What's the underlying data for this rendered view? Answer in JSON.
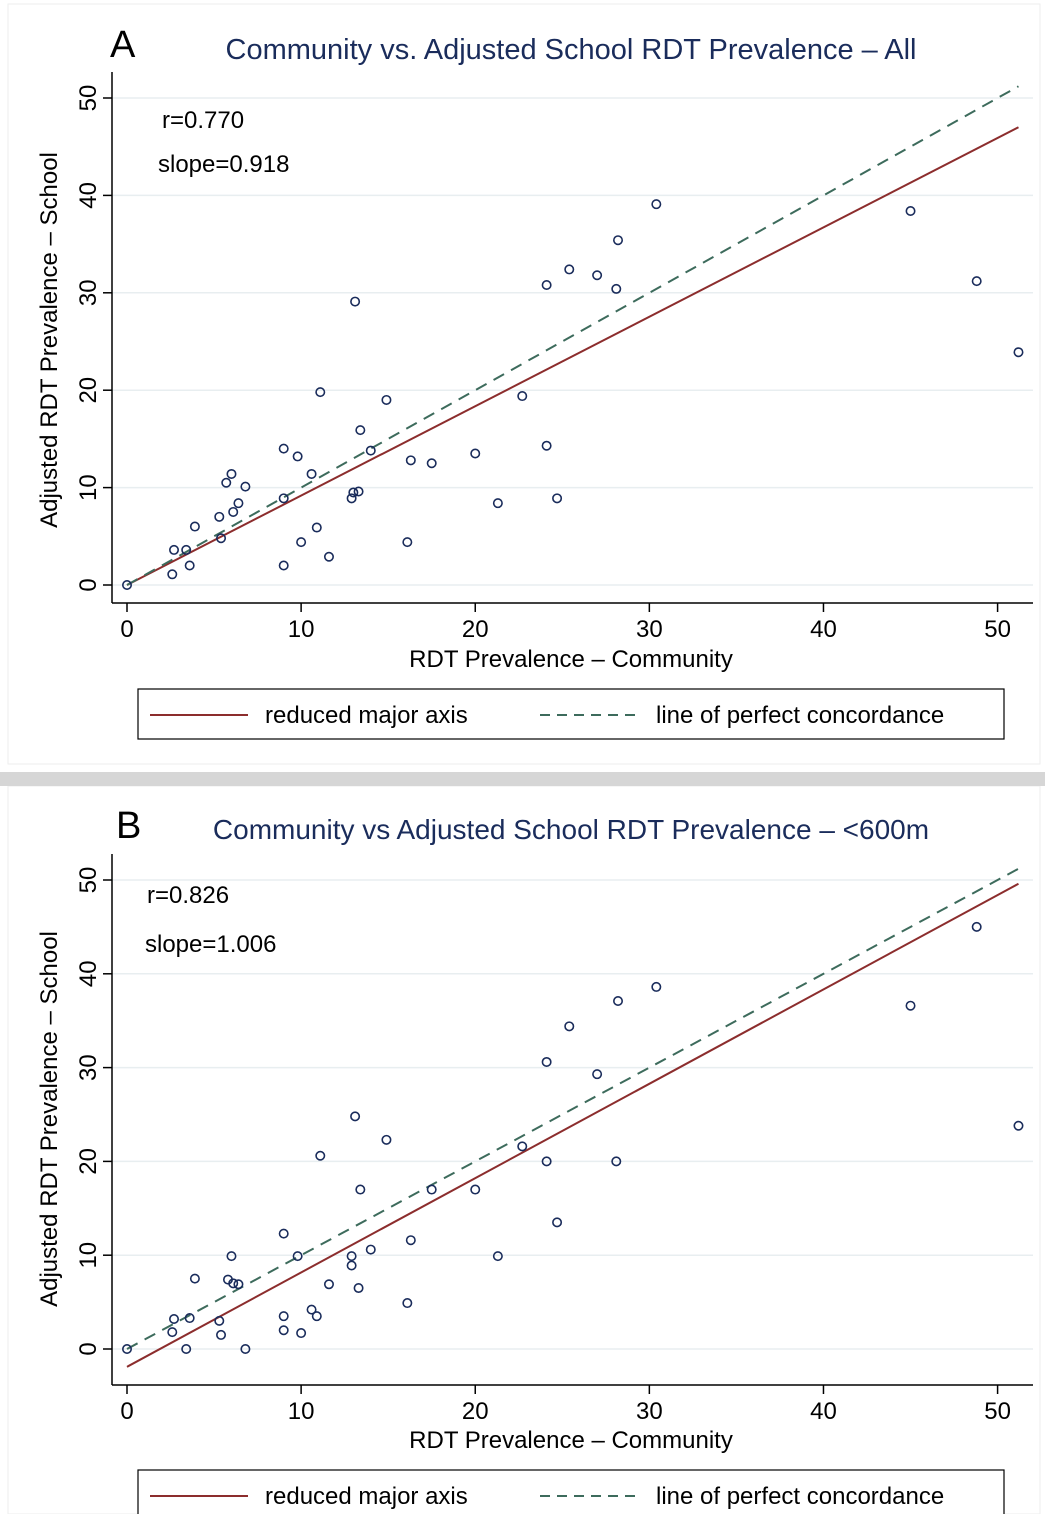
{
  "colors": {
    "title": "#1a2c5b",
    "rma": "#8c2d2d",
    "concordance": "#3d6b5c",
    "marker": "#1a2c5b",
    "grid": "#e8eef0",
    "axis": "#000000",
    "separator": "#d6d6d6"
  },
  "chart_data": [
    {
      "type": "scatter",
      "panel_letter": "A",
      "title": "Community vs. Adjusted School RDT Prevalence – All",
      "xlabel": "RDT Prevalence – Community",
      "ylabel": "Adjusted RDT Prevalence – School",
      "xlim": [
        0,
        51
      ],
      "ylim": [
        0,
        50
      ],
      "xticks": [
        0,
        10,
        20,
        30,
        40,
        50
      ],
      "yticks": [
        0,
        10,
        20,
        30,
        40,
        50
      ],
      "grid": true,
      "legend_position": "bottom",
      "annotations": {
        "r": "r=0.770",
        "slope": "slope=0.918"
      },
      "series": [
        {
          "name": "reduced major axis",
          "kind": "line",
          "style": "solid",
          "x": [
            0,
            51.2
          ],
          "y": [
            0.0,
            47.0
          ]
        },
        {
          "name": "line of perfect concordance",
          "kind": "line",
          "style": "dashed",
          "x": [
            0,
            51.2
          ],
          "y": [
            0,
            51.2
          ]
        },
        {
          "kind": "points",
          "points": [
            [
              0,
              0
            ],
            [
              2.6,
              1.1
            ],
            [
              2.7,
              3.6
            ],
            [
              3.4,
              3.6
            ],
            [
              3.6,
              2.0
            ],
            [
              3.9,
              6.0
            ],
            [
              5.3,
              7.0
            ],
            [
              5.4,
              4.8
            ],
            [
              5.7,
              10.5
            ],
            [
              6.0,
              11.4
            ],
            [
              6.1,
              7.5
            ],
            [
              6.4,
              8.4
            ],
            [
              6.8,
              10.1
            ],
            [
              9.0,
              14.0
            ],
            [
              9.0,
              8.9
            ],
            [
              9.0,
              2.0
            ],
            [
              9.8,
              13.2
            ],
            [
              10.0,
              4.4
            ],
            [
              10.6,
              11.4
            ],
            [
              10.9,
              5.9
            ],
            [
              11.1,
              19.8
            ],
            [
              11.6,
              2.9
            ],
            [
              12.9,
              8.9
            ],
            [
              13.0,
              9.5
            ],
            [
              13.1,
              29.1
            ],
            [
              13.3,
              9.6
            ],
            [
              13.4,
              15.9
            ],
            [
              14.0,
              13.8
            ],
            [
              14.9,
              19.0
            ],
            [
              16.1,
              4.4
            ],
            [
              16.3,
              12.8
            ],
            [
              17.5,
              12.5
            ],
            [
              20.0,
              13.5
            ],
            [
              21.3,
              8.4
            ],
            [
              22.7,
              19.4
            ],
            [
              24.1,
              14.3
            ],
            [
              24.1,
              30.8
            ],
            [
              24.7,
              8.9
            ],
            [
              25.4,
              32.4
            ],
            [
              27.0,
              31.8
            ],
            [
              28.1,
              30.4
            ],
            [
              28.2,
              35.4
            ],
            [
              30.4,
              39.1
            ],
            [
              45.0,
              38.4
            ],
            [
              48.8,
              31.2
            ],
            [
              51.2,
              23.9
            ]
          ]
        }
      ]
    },
    {
      "type": "scatter",
      "panel_letter": "B",
      "title": "Community vs Adjusted School RDT Prevalence – <600m",
      "xlabel": "RDT Prevalence – Community",
      "ylabel": "Adjusted RDT Prevalence – School",
      "xlim": [
        0,
        51
      ],
      "ylim": [
        0,
        50
      ],
      "xticks": [
        0,
        10,
        20,
        30,
        40,
        50
      ],
      "yticks": [
        0,
        10,
        20,
        30,
        40,
        50
      ],
      "grid": true,
      "legend_position": "bottom",
      "annotations": {
        "r": "r=0.826",
        "slope": "slope=1.006"
      },
      "series": [
        {
          "name": "reduced major axis",
          "kind": "line",
          "style": "solid",
          "x": [
            0,
            51.2
          ],
          "y": [
            -1.9,
            49.6
          ]
        },
        {
          "name": "line of perfect concordance",
          "kind": "line",
          "style": "dashed",
          "x": [
            0,
            51.2
          ],
          "y": [
            0,
            51.2
          ]
        },
        {
          "kind": "points",
          "points": [
            [
              0,
              0
            ],
            [
              2.6,
              1.8
            ],
            [
              2.7,
              3.2
            ],
            [
              3.4,
              0
            ],
            [
              3.6,
              3.3
            ],
            [
              3.9,
              7.5
            ],
            [
              5.3,
              3.0
            ],
            [
              5.4,
              1.5
            ],
            [
              5.8,
              7.4
            ],
            [
              6.0,
              9.9
            ],
            [
              6.1,
              7.0
            ],
            [
              6.4,
              6.9
            ],
            [
              6.8,
              0
            ],
            [
              9.0,
              12.3
            ],
            [
              9.0,
              3.5
            ],
            [
              9.0,
              2.0
            ],
            [
              9.8,
              9.9
            ],
            [
              10.0,
              1.7
            ],
            [
              10.6,
              4.2
            ],
            [
              10.9,
              3.5
            ],
            [
              11.1,
              20.6
            ],
            [
              11.6,
              6.9
            ],
            [
              12.9,
              9.9
            ],
            [
              12.9,
              8.9
            ],
            [
              13.1,
              24.8
            ],
            [
              13.3,
              6.5
            ],
            [
              13.4,
              17.0
            ],
            [
              14.0,
              10.6
            ],
            [
              14.9,
              22.3
            ],
            [
              16.1,
              4.9
            ],
            [
              16.3,
              11.6
            ],
            [
              17.5,
              17.0
            ],
            [
              20.0,
              17.0
            ],
            [
              21.3,
              9.9
            ],
            [
              22.7,
              21.6
            ],
            [
              24.1,
              20.0
            ],
            [
              24.1,
              30.6
            ],
            [
              24.7,
              13.5
            ],
            [
              25.4,
              34.4
            ],
            [
              27.0,
              29.3
            ],
            [
              28.1,
              20.0
            ],
            [
              28.2,
              37.1
            ],
            [
              30.4,
              38.6
            ],
            [
              45.0,
              36.6
            ],
            [
              48.8,
              45.0
            ],
            [
              51.2,
              23.8
            ]
          ]
        }
      ]
    }
  ]
}
